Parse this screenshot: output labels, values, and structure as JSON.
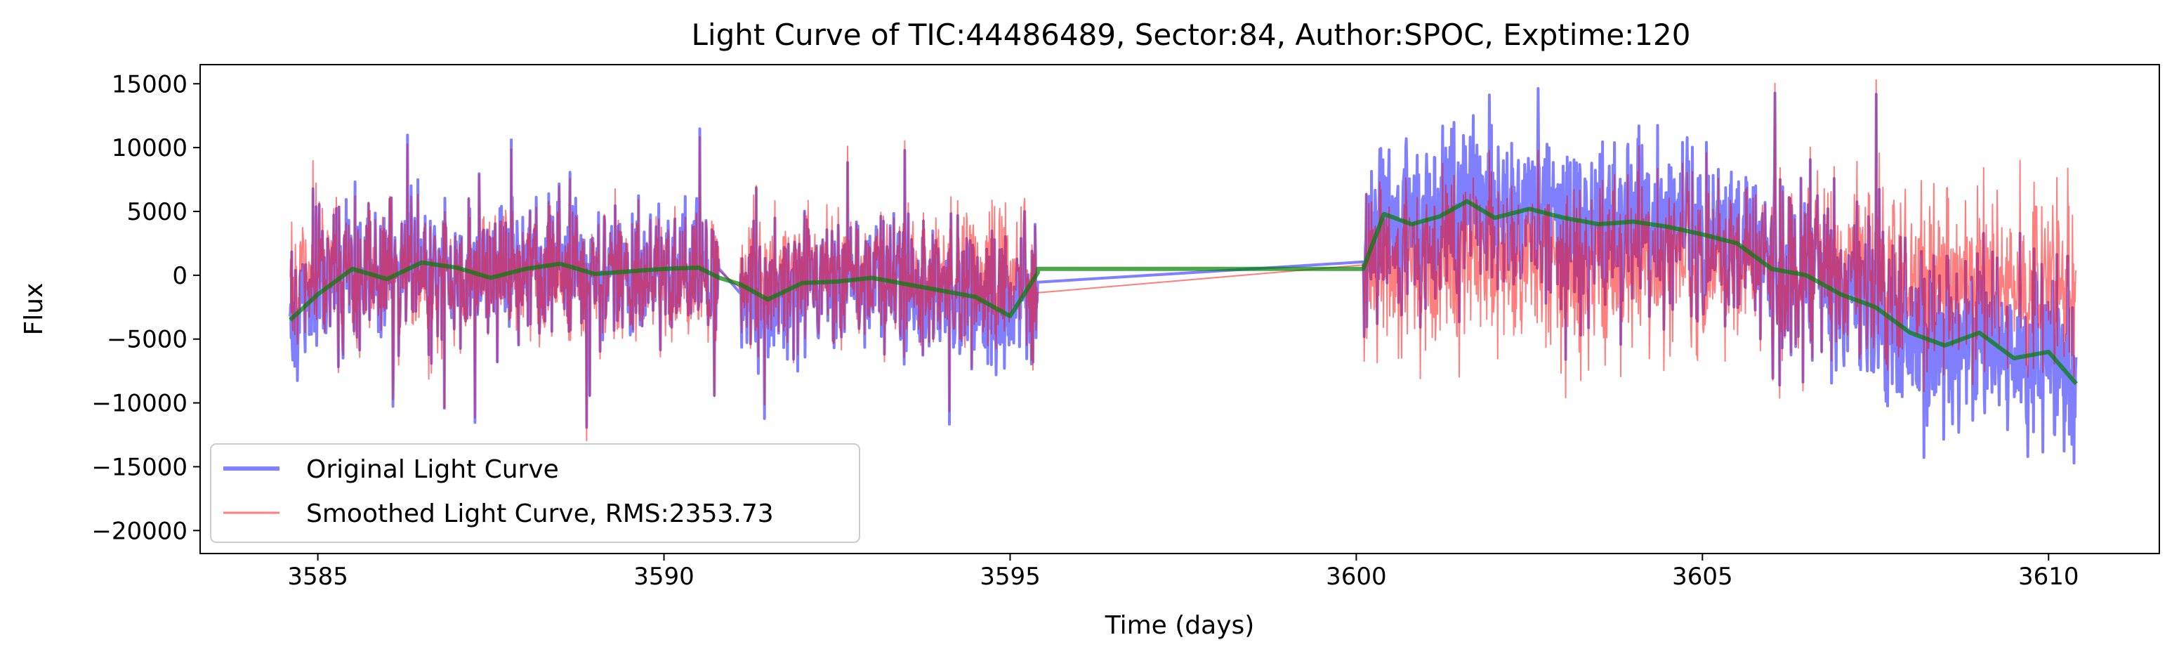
{
  "chart_data": {
    "type": "line",
    "title": "Light Curve of TIC:44486489, Sector:84, Author:SPOC, Exptime:120",
    "xlabel": "Time (days)",
    "ylabel": "Flux",
    "xlim": [
      3583.3,
      3611.6
    ],
    "ylim": [
      -21800,
      16500
    ],
    "xticks": [
      3585,
      3590,
      3595,
      3600,
      3605,
      3610
    ],
    "xtick_labels": [
      "3585",
      "3590",
      "3595",
      "3600",
      "3605",
      "3610"
    ],
    "yticks": [
      15000,
      10000,
      5000,
      0,
      -5000,
      -10000,
      -15000,
      -20000
    ],
    "ytick_labels": [
      "15000",
      "10000",
      "5000",
      "0",
      "−5000",
      "−10000",
      "−15000",
      "−20000"
    ],
    "grid": false,
    "legend_position": "lower-left",
    "segments": [
      [
        3584.6,
        3590.8
      ],
      [
        3591.1,
        3595.4
      ],
      [
        3600.1,
        3610.4
      ]
    ],
    "series": [
      {
        "name": "Original Light Curve",
        "color": "#0000ff",
        "opacity": 0.5,
        "kind": "noisy",
        "scatter": "gaussian, ~±3000 typical, extremes to +14500 / −20000"
      },
      {
        "name": "Smoothed Light Curve, RMS:2353.73",
        "color": "#ff0000",
        "opacity": 0.5,
        "kind": "noisy",
        "rms": 2353.73
      },
      {
        "name": "",
        "color": "#008000",
        "opacity": 0.7,
        "kind": "trend",
        "gap_value": 500,
        "x": [
          3584.6,
          3585.0,
          3585.5,
          3586.0,
          3586.5,
          3587.0,
          3587.5,
          3588.0,
          3588.5,
          3589.0,
          3589.5,
          3590.0,
          3590.5,
          3590.8,
          3591.1,
          3591.5,
          3592.0,
          3592.5,
          3593.0,
          3593.5,
          3594.0,
          3594.5,
          3595.0,
          3595.4,
          3600.1,
          3600.4,
          3600.8,
          3601.2,
          3601.6,
          3602.0,
          3602.5,
          3603.0,
          3603.5,
          3604.0,
          3604.5,
          3605.0,
          3605.5,
          3606.0,
          3606.5,
          3607.0,
          3607.5,
          3608.0,
          3608.5,
          3609.0,
          3609.5,
          3610.0,
          3610.4
        ],
        "y": [
          -3500,
          -1500,
          500,
          -300,
          1000,
          600,
          -200,
          500,
          900,
          100,
          300,
          500,
          600,
          -200,
          -700,
          -1900,
          -600,
          -500,
          -200,
          -700,
          -1200,
          -1700,
          -3200,
          200,
          500,
          4800,
          4000,
          4600,
          5800,
          4500,
          5200,
          4500,
          4000,
          4200,
          3800,
          3200,
          2500,
          500,
          0,
          -1500,
          -2500,
          -4500,
          -5500,
          -4500,
          -6500,
          -6000,
          -8500
        ]
      }
    ],
    "legend": [
      {
        "label": "Original Light Curve",
        "color": "#0000ff",
        "opacity": 0.5,
        "line": "thick"
      },
      {
        "label": "Smoothed Light Curve, RMS:2353.73",
        "color": "#ff0000",
        "opacity": 0.5,
        "line": "thin"
      }
    ]
  }
}
